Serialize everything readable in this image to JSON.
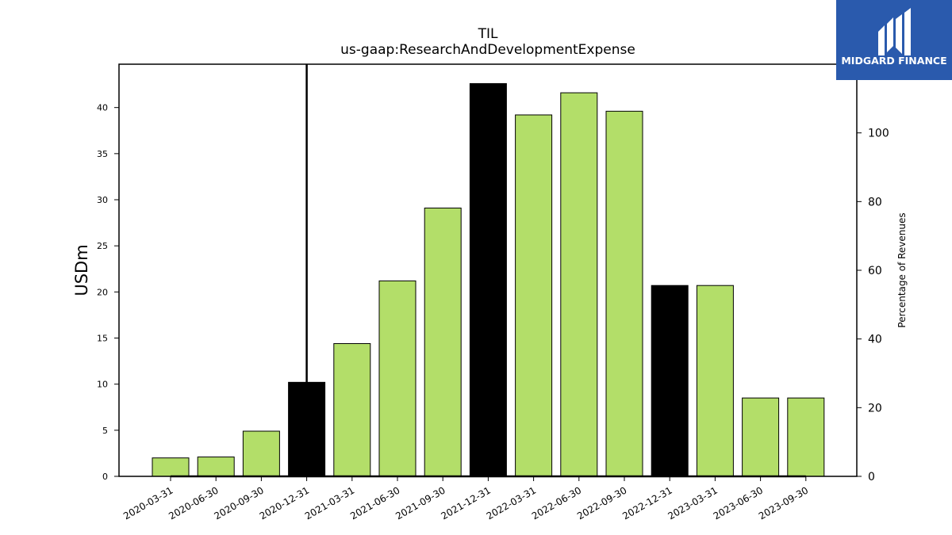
{
  "chart_data": {
    "type": "bar",
    "title": "TIL",
    "subtitle": "us-gaap:ResearchAndDevelopmentExpense",
    "ylabel": "USDm",
    "ylabel_right": "Percentage of Revenues",
    "categories": [
      "2020-03-31",
      "2020-06-30",
      "2020-09-30",
      "2020-12-31",
      "2021-03-31",
      "2021-06-30",
      "2021-09-30",
      "2021-12-31",
      "2022-03-31",
      "2022-06-30",
      "2022-09-30",
      "2022-12-31",
      "2023-03-31",
      "2023-06-30",
      "2023-09-30"
    ],
    "values": [
      2.0,
      2.1,
      4.9,
      10.2,
      14.4,
      21.2,
      29.1,
      42.6,
      39.2,
      41.6,
      39.6,
      20.7,
      20.7,
      8.5,
      8.5
    ],
    "bar_colors": [
      "#b3de69",
      "#b3de69",
      "#b3de69",
      "#000000",
      "#b3de69",
      "#b3de69",
      "#b3de69",
      "#000000",
      "#b3de69",
      "#b3de69",
      "#b3de69",
      "#000000",
      "#b3de69",
      "#b3de69",
      "#b3de69"
    ],
    "ylim": [
      0,
      44.7
    ],
    "yticks": [
      0,
      5,
      10,
      15,
      20,
      25,
      30,
      35,
      40
    ],
    "ylim_right": [
      0,
      120
    ],
    "yticks_right": [
      0,
      20,
      40,
      60,
      80,
      100
    ],
    "percentage_line": {
      "values": [
        0,
        0,
        0,
        0,
        0,
        0,
        0,
        0,
        0,
        0,
        0,
        0,
        0,
        0,
        0
      ],
      "vertical_marker_at": "2020-12-31",
      "color": "#000000"
    }
  },
  "logo": {
    "text": "MIDGARD FINANCE",
    "bg_color": "#2a5aad"
  }
}
